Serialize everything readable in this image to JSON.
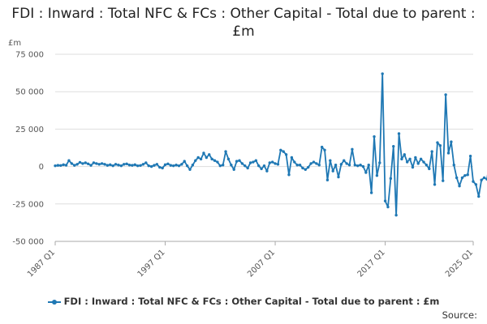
{
  "chart_data": {
    "type": "line",
    "title": "FDI : Inward : Total NFC & FCs : Other Capital - Total due to parent : £m",
    "ylabel_unit": "£m",
    "xlabel": "",
    "ylim": [
      -50000,
      75000
    ],
    "y_ticks": [
      -50000,
      -25000,
      0,
      25000,
      50000,
      75000
    ],
    "y_tick_labels": [
      "-50 000",
      "-25 000",
      "0",
      "25 000",
      "50 000",
      "75 000"
    ],
    "x_range": [
      1987,
      2025
    ],
    "x_ticks": [
      1987,
      1997,
      2007,
      2017,
      2025
    ],
    "x_tick_labels": [
      "1987 Q1",
      "1997 Q1",
      "2007 Q1",
      "2017 Q1",
      "2025 Q1"
    ],
    "grid": "horizontal",
    "legend_position": "bottom",
    "series": [
      {
        "name": "FDI : Inward : Total NFC & FCs : Other Capital - Total due to parent : £m",
        "color": "#1f78b4",
        "points": [
          [
            1987.0,
            500
          ],
          [
            1987.25,
            800
          ],
          [
            1987.5,
            700
          ],
          [
            1987.75,
            1200
          ],
          [
            1988.0,
            900
          ],
          [
            1988.25,
            4000
          ],
          [
            1988.5,
            2000
          ],
          [
            1988.75,
            800
          ],
          [
            1989.0,
            1500
          ],
          [
            1989.25,
            2800
          ],
          [
            1989.5,
            2000
          ],
          [
            1989.75,
            2500
          ],
          [
            1990.0,
            1800
          ],
          [
            1990.25,
            800
          ],
          [
            1990.5,
            2500
          ],
          [
            1990.75,
            2000
          ],
          [
            1991.0,
            1500
          ],
          [
            1991.25,
            2000
          ],
          [
            1991.5,
            1500
          ],
          [
            1991.75,
            800
          ],
          [
            1992.0,
            1200
          ],
          [
            1992.25,
            500
          ],
          [
            1992.5,
            1500
          ],
          [
            1992.75,
            1000
          ],
          [
            1993.0,
            500
          ],
          [
            1993.25,
            1500
          ],
          [
            1993.5,
            1800
          ],
          [
            1993.75,
            1000
          ],
          [
            1994.0,
            800
          ],
          [
            1994.25,
            1200
          ],
          [
            1994.5,
            500
          ],
          [
            1994.75,
            700
          ],
          [
            1995.0,
            1500
          ],
          [
            1995.25,
            2500
          ],
          [
            1995.5,
            500
          ],
          [
            1995.75,
            0
          ],
          [
            1996.0,
            800
          ],
          [
            1996.25,
            1500
          ],
          [
            1996.5,
            -500
          ],
          [
            1996.75,
            -1000
          ],
          [
            1997.0,
            1200
          ],
          [
            1997.25,
            1800
          ],
          [
            1997.5,
            800
          ],
          [
            1997.75,
            500
          ],
          [
            1998.0,
            1000
          ],
          [
            1998.25,
            500
          ],
          [
            1998.5,
            1500
          ],
          [
            1998.75,
            3500
          ],
          [
            1999.0,
            500
          ],
          [
            1999.25,
            -2000
          ],
          [
            1999.5,
            1000
          ],
          [
            1999.75,
            4000
          ],
          [
            2000.0,
            6000
          ],
          [
            2000.25,
            5000
          ],
          [
            2000.5,
            9000
          ],
          [
            2000.75,
            6000
          ],
          [
            2001.0,
            8000
          ],
          [
            2001.25,
            5000
          ],
          [
            2001.5,
            4000
          ],
          [
            2001.75,
            3000
          ],
          [
            2002.0,
            500
          ],
          [
            2002.25,
            1000
          ],
          [
            2002.5,
            10000
          ],
          [
            2002.75,
            5000
          ],
          [
            2003.0,
            1000
          ],
          [
            2003.25,
            -2000
          ],
          [
            2003.5,
            3500
          ],
          [
            2003.75,
            4000
          ],
          [
            2004.0,
            2000
          ],
          [
            2004.25,
            500
          ],
          [
            2004.5,
            -1000
          ],
          [
            2004.75,
            2500
          ],
          [
            2005.0,
            3000
          ],
          [
            2005.25,
            4000
          ],
          [
            2005.5,
            500
          ],
          [
            2005.75,
            -1500
          ],
          [
            2006.0,
            500
          ],
          [
            2006.25,
            -3000
          ],
          [
            2006.5,
            2500
          ],
          [
            2006.75,
            3000
          ],
          [
            2007.0,
            2000
          ],
          [
            2007.25,
            1500
          ],
          [
            2007.5,
            11000
          ],
          [
            2007.75,
            10000
          ],
          [
            2008.0,
            8000
          ],
          [
            2008.25,
            -5500
          ],
          [
            2008.5,
            6000
          ],
          [
            2008.75,
            3000
          ],
          [
            2009.0,
            1000
          ],
          [
            2009.25,
            1000
          ],
          [
            2009.5,
            -1000
          ],
          [
            2009.75,
            -2000
          ],
          [
            2010.0,
            -500
          ],
          [
            2010.25,
            2000
          ],
          [
            2010.5,
            3000
          ],
          [
            2010.75,
            2000
          ],
          [
            2011.0,
            1000
          ],
          [
            2011.25,
            13000
          ],
          [
            2011.5,
            11000
          ],
          [
            2011.75,
            -9000
          ],
          [
            2012.0,
            4000
          ],
          [
            2012.25,
            -3000
          ],
          [
            2012.5,
            1000
          ],
          [
            2012.75,
            -7000
          ],
          [
            2013.0,
            1500
          ],
          [
            2013.25,
            4000
          ],
          [
            2013.5,
            2000
          ],
          [
            2013.75,
            1000
          ],
          [
            2014.0,
            11500
          ],
          [
            2014.25,
            1000
          ],
          [
            2014.5,
            500
          ],
          [
            2014.75,
            1000
          ],
          [
            2015.0,
            0
          ],
          [
            2015.25,
            -4000
          ],
          [
            2015.5,
            1000
          ],
          [
            2015.75,
            -17500
          ],
          [
            2016.0,
            20000
          ],
          [
            2016.25,
            -6000
          ],
          [
            2016.5,
            2500
          ],
          [
            2016.75,
            62000
          ],
          [
            2017.0,
            -23000
          ],
          [
            2017.25,
            -27000
          ],
          [
            2017.5,
            -8000
          ],
          [
            2017.75,
            13500
          ],
          [
            2018.0,
            -32500
          ],
          [
            2018.25,
            22000
          ],
          [
            2018.5,
            5000
          ],
          [
            2018.75,
            8000
          ],
          [
            2019.0,
            3000
          ],
          [
            2019.25,
            5000
          ],
          [
            2019.5,
            -500
          ],
          [
            2019.75,
            6000
          ],
          [
            2020.0,
            2000
          ],
          [
            2020.25,
            5000
          ],
          [
            2020.5,
            3000
          ],
          [
            2020.75,
            1000
          ],
          [
            2021.0,
            -1500
          ],
          [
            2021.25,
            10000
          ],
          [
            2021.5,
            -12000
          ],
          [
            2021.75,
            16000
          ],
          [
            2022.0,
            14000
          ],
          [
            2022.25,
            -9500
          ],
          [
            2022.5,
            48000
          ],
          [
            2022.75,
            9000
          ],
          [
            2023.0,
            16500
          ],
          [
            2023.25,
            1000
          ],
          [
            2023.5,
            -7500
          ],
          [
            2023.75,
            -13000
          ],
          [
            2024.0,
            -7500
          ],
          [
            2024.25,
            -6000
          ],
          [
            2024.5,
            -5500
          ],
          [
            2024.75,
            7000
          ],
          [
            2025.0,
            -10000
          ],
          [
            2025.25,
            -12000
          ],
          [
            2025.5,
            -20000
          ],
          [
            2025.75,
            -9000
          ],
          [
            2026.0,
            -7500
          ],
          [
            2026.25,
            -8500
          ],
          [
            2026.5,
            3000
          ],
          [
            2026.75,
            2000
          ],
          [
            2027.0,
            -1500
          ]
        ]
      }
    ]
  },
  "legend": {
    "label": "FDI : Inward : Total NFC & FCs : Other Capital - Total due to parent : £m"
  },
  "footer": {
    "source_label": "Source:"
  },
  "colors": {
    "series": "#1f78b4",
    "grid": "#dddddd",
    "axis": "#aaaaaa"
  }
}
